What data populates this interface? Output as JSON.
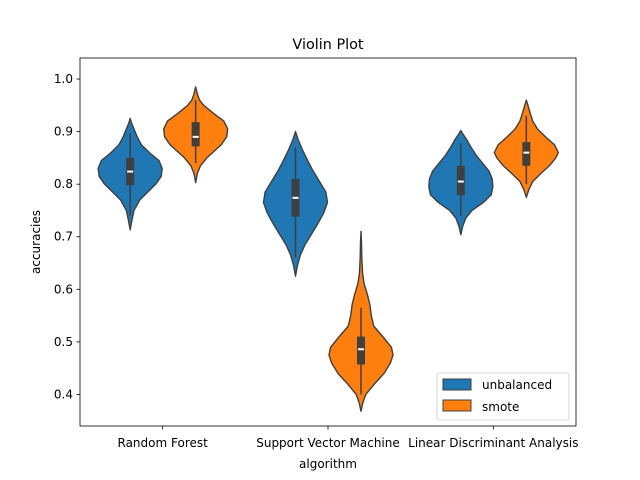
{
  "chart_data": {
    "type": "violin",
    "title": "Violin Plot",
    "xlabel": "algorithm",
    "ylabel": "accuracies",
    "categories": [
      "Random Forest",
      "Support Vector Machine",
      "Linear Discriminant Analysis"
    ],
    "ylim": [
      0.34,
      1.04
    ],
    "yticks": [
      0.4,
      0.5,
      0.6,
      0.7,
      0.8,
      0.9,
      1.0
    ],
    "ytick_labels": [
      "0.4",
      "0.5",
      "0.6",
      "0.7",
      "0.8",
      "0.9",
      "1.0"
    ],
    "grid": false,
    "legend_position": "lower-right",
    "series": [
      {
        "name": "unbalanced",
        "color": "#1f77b4",
        "violins": [
          {
            "min": 0.713,
            "max": 0.925,
            "q1": 0.798,
            "median": 0.824,
            "q3": 0.85,
            "whisker_low": 0.74,
            "whisker_high": 0.897,
            "density": [
              [
                0.713,
                0.0
              ],
              [
                0.73,
                0.05
              ],
              [
                0.75,
                0.12
              ],
              [
                0.77,
                0.3
              ],
              [
                0.785,
                0.55
              ],
              [
                0.8,
                0.8
              ],
              [
                0.815,
                0.97
              ],
              [
                0.83,
                1.0
              ],
              [
                0.845,
                0.9
              ],
              [
                0.86,
                0.6
              ],
              [
                0.875,
                0.35
              ],
              [
                0.89,
                0.22
              ],
              [
                0.905,
                0.12
              ],
              [
                0.915,
                0.05
              ],
              [
                0.925,
                0.0
              ]
            ]
          },
          {
            "min": 0.625,
            "max": 0.9,
            "q1": 0.738,
            "median": 0.774,
            "q3": 0.81,
            "whisker_low": 0.66,
            "whisker_high": 0.87,
            "density": [
              [
                0.625,
                0.0
              ],
              [
                0.645,
                0.06
              ],
              [
                0.665,
                0.15
              ],
              [
                0.685,
                0.3
              ],
              [
                0.705,
                0.5
              ],
              [
                0.725,
                0.7
              ],
              [
                0.745,
                0.88
              ],
              [
                0.765,
                1.0
              ],
              [
                0.785,
                0.95
              ],
              [
                0.805,
                0.75
              ],
              [
                0.825,
                0.55
              ],
              [
                0.845,
                0.38
              ],
              [
                0.865,
                0.22
              ],
              [
                0.885,
                0.08
              ],
              [
                0.9,
                0.0
              ]
            ]
          },
          {
            "min": 0.704,
            "max": 0.902,
            "q1": 0.779,
            "median": 0.805,
            "q3": 0.835,
            "whisker_low": 0.74,
            "whisker_high": 0.878,
            "density": [
              [
                0.704,
                0.0
              ],
              [
                0.72,
                0.06
              ],
              [
                0.735,
                0.15
              ],
              [
                0.75,
                0.35
              ],
              [
                0.765,
                0.7
              ],
              [
                0.78,
                0.95
              ],
              [
                0.795,
                1.0
              ],
              [
                0.81,
                0.98
              ],
              [
                0.825,
                0.88
              ],
              [
                0.84,
                0.68
              ],
              [
                0.855,
                0.48
              ],
              [
                0.87,
                0.32
              ],
              [
                0.885,
                0.18
              ],
              [
                0.895,
                0.07
              ],
              [
                0.902,
                0.0
              ]
            ]
          }
        ]
      },
      {
        "name": "smote",
        "color": "#ff7f0e",
        "violins": [
          {
            "min": 0.803,
            "max": 0.985,
            "q1": 0.872,
            "median": 0.89,
            "q3": 0.918,
            "whisker_low": 0.84,
            "whisker_high": 0.96,
            "density": [
              [
                0.803,
                0.0
              ],
              [
                0.82,
                0.05
              ],
              [
                0.835,
                0.15
              ],
              [
                0.85,
                0.35
              ],
              [
                0.865,
                0.62
              ],
              [
                0.875,
                0.8
              ],
              [
                0.89,
                0.97
              ],
              [
                0.905,
                1.0
              ],
              [
                0.92,
                0.88
              ],
              [
                0.935,
                0.55
              ],
              [
                0.95,
                0.25
              ],
              [
                0.96,
                0.12
              ],
              [
                0.97,
                0.06
              ],
              [
                0.985,
                0.0
              ]
            ]
          },
          {
            "min": 0.368,
            "max": 0.71,
            "q1": 0.457,
            "median": 0.486,
            "q3": 0.51,
            "whisker_low": 0.4,
            "whisker_high": 0.565,
            "density": [
              [
                0.368,
                0.0
              ],
              [
                0.385,
                0.06
              ],
              [
                0.4,
                0.15
              ],
              [
                0.42,
                0.42
              ],
              [
                0.44,
                0.72
              ],
              [
                0.46,
                0.92
              ],
              [
                0.475,
                1.0
              ],
              [
                0.49,
                0.95
              ],
              [
                0.51,
                0.68
              ],
              [
                0.53,
                0.4
              ],
              [
                0.55,
                0.32
              ],
              [
                0.57,
                0.28
              ],
              [
                0.59,
                0.2
              ],
              [
                0.61,
                0.1
              ],
              [
                0.63,
                0.05
              ],
              [
                0.66,
                0.025
              ],
              [
                0.69,
                0.015
              ],
              [
                0.71,
                0.0
              ]
            ]
          },
          {
            "min": 0.775,
            "max": 0.96,
            "q1": 0.835,
            "median": 0.86,
            "q3": 0.88,
            "whisker_low": 0.8,
            "whisker_high": 0.93,
            "density": [
              [
                0.775,
                0.0
              ],
              [
                0.79,
                0.08
              ],
              [
                0.805,
                0.2
              ],
              [
                0.82,
                0.45
              ],
              [
                0.835,
                0.72
              ],
              [
                0.85,
                0.92
              ],
              [
                0.86,
                1.0
              ],
              [
                0.875,
                0.88
              ],
              [
                0.89,
                0.6
              ],
              [
                0.905,
                0.35
              ],
              [
                0.92,
                0.2
              ],
              [
                0.935,
                0.12
              ],
              [
                0.95,
                0.05
              ],
              [
                0.96,
                0.0
              ]
            ]
          }
        ]
      }
    ]
  }
}
